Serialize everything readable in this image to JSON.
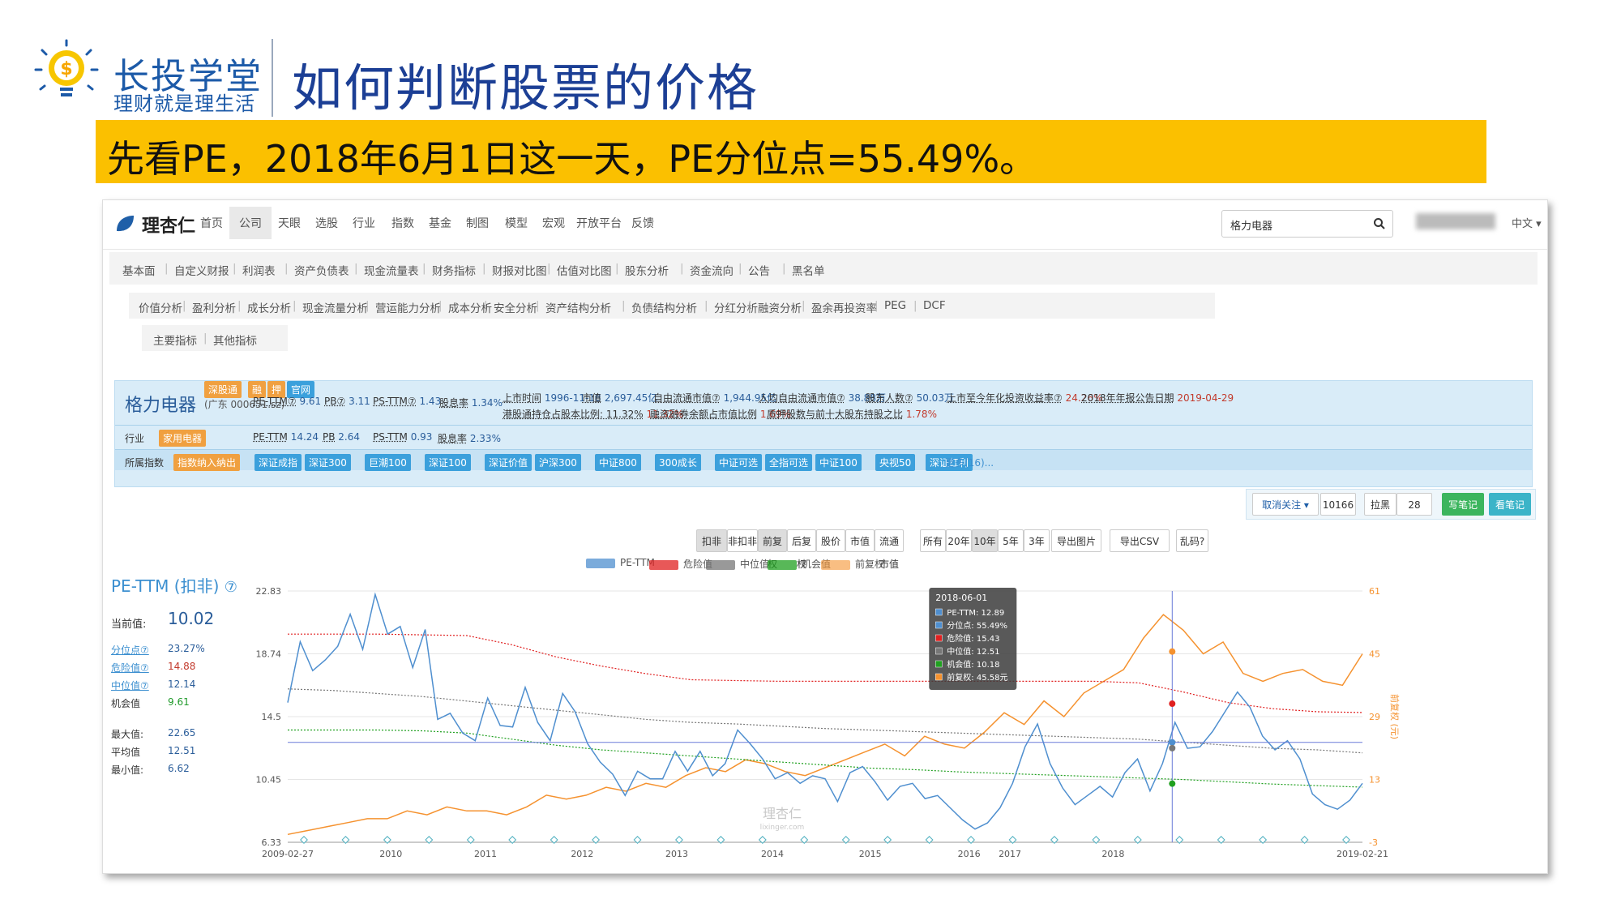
{
  "slide": {
    "brand_name": "长投学堂",
    "brand_slogan": "理财就是理生活",
    "title": "如何判断股票的价格",
    "banner": "先看PE，2018年6月1日这一天，PE分位点=55.49%。"
  },
  "site": {
    "logo": "理杏仁",
    "nav": [
      "首页",
      "公司",
      "天眼",
      "选股",
      "行业",
      "指数",
      "基金",
      "制图",
      "模型",
      "宏观",
      "开放平台",
      "反馈"
    ],
    "search_value": "格力电器",
    "language": "中文"
  },
  "tabs1": [
    "基本面",
    "自定义财报",
    "利润表",
    "资产负债表",
    "现金流量表",
    "财务指标",
    "财报对比图",
    "估值对比图",
    "股东分析",
    "资金流向",
    "公告",
    "黑名单"
  ],
  "tabs2": [
    "价值分析",
    "盈利分析",
    "成长分析",
    "现金流量分析",
    "营运能力分析",
    "成本分析",
    "安全分析",
    "资产结构分析",
    "负债结构分析",
    "分红分析",
    "融资分析",
    "盈余再投资率",
    "PEG",
    "DCF"
  ],
  "tabs3": [
    "主要指标",
    "其他指标"
  ],
  "stock": {
    "name": "格力电器",
    "code": "(广东 000651.sz)",
    "tags": [
      "深股通",
      "融",
      "押",
      "官网"
    ],
    "row1": [
      {
        "k": "PE-TTM⑦",
        "v": "9.61"
      },
      {
        "k": "PB⑦",
        "v": "3.11"
      },
      {
        "k": "PS-TTM⑦",
        "v": "1.43"
      },
      {
        "k": "股息率",
        "v": "1.34%"
      }
    ],
    "row1b": [
      {
        "k": "上市时间",
        "v": "1996-11-18"
      },
      {
        "k": "市值",
        "v": "2,697.45亿"
      },
      {
        "k": "自由流通市值⑦",
        "v": "1,944.95亿"
      },
      {
        "k": "人均自由流通市值⑦",
        "v": "38.88万"
      },
      {
        "k": "股东人数⑦",
        "v": "50.03万"
      },
      {
        "k": "上市至今年化投资收益率⑦",
        "v": "24.26%"
      },
      {
        "k": "2018年年报公告日期",
        "v": "2019-04-29"
      }
    ],
    "row2b": [
      {
        "k": "港股通持仓占股本比例: 11.32%",
        "v": "11.32%"
      },
      {
        "k": "融资融券余额占市值比例",
        "v": "1.69%"
      },
      {
        "k": "质押股数与前十大股东持股之比",
        "v": "1.78%"
      }
    ],
    "industry_label": "行业",
    "industry": "家用电器",
    "row3": [
      {
        "k": "PE-TTM",
        "v": "14.24"
      },
      {
        "k": "PB",
        "v": "2.64"
      },
      {
        "k": "PS-TTM",
        "v": "0.93"
      },
      {
        "k": "股息率",
        "v": "2.33%"
      }
    ],
    "index_label": "所属指数",
    "index_tag": "指数纳入纳出",
    "indices": [
      "深证成指",
      "深证300",
      "巨潮100",
      "深证100",
      "深证价值",
      "沪深300",
      "中证800",
      "300成长",
      "中证可选",
      "全指可选",
      "中证100",
      "央视50",
      "深证红利"
    ],
    "more": "更多(16)..."
  },
  "actions": {
    "unfollow": "取消关注",
    "follow_count": "10166",
    "blacklist": "拉黑",
    "black_count": "28",
    "write_note": "写笔记",
    "view_note": "看笔记"
  },
  "controls": {
    "group1": [
      "扣非",
      "非扣非"
    ],
    "group2": [
      "前复权",
      "后复权",
      "股价",
      "市值",
      "流通市值"
    ],
    "group3": [
      "所有",
      "20年",
      "10年",
      "5年",
      "3年"
    ],
    "export_img": "导出图片",
    "export_csv": "导出CSV",
    "garbled": "乱码?"
  },
  "side": {
    "title": "PE-TTM (扣非)",
    "current_label": "当前值:",
    "current": "10.02",
    "stats": [
      {
        "k": "分位点⑦",
        "v": "23.27%"
      },
      {
        "k": "危险值⑦",
        "v": "14.88"
      },
      {
        "k": "中位值⑦",
        "v": "12.14"
      },
      {
        "k": "机会值",
        "v": "9.61"
      }
    ],
    "stats2": [
      {
        "k": "最大值:",
        "v": "22.65"
      },
      {
        "k": "平均值",
        "v": "12.51"
      },
      {
        "k": "最小值:",
        "v": "6.62"
      }
    ]
  },
  "chart_data": {
    "type": "line",
    "title": "PE-TTM (扣非)",
    "legend": [
      "PE-TTM",
      "危险值",
      "中位值",
      "机会值",
      "前复权"
    ],
    "colors": {
      "pe": "#4f8fcf",
      "danger": "#e02020",
      "median": "#777777",
      "opportunity": "#20a020",
      "price": "#f5922f"
    },
    "xlabels": [
      "2009-02-27",
      "2010",
      "2011",
      "2012",
      "2013",
      "2014",
      "2015",
      "2016",
      "2017",
      "2018",
      "2019-02-21"
    ],
    "yleft": [
      "22.83",
      "18.74",
      "14.5",
      "10.45",
      "6.33"
    ],
    "yright": [
      "61",
      "45",
      "29",
      "13",
      "-3"
    ],
    "yright_label": "前复权 (元)",
    "ylim_left": [
      6.33,
      22.83
    ],
    "ylim_right": [
      -3,
      61
    ],
    "pe_series": [
      15.5,
      19.5,
      17.6,
      18.3,
      19.2,
      21.3,
      19.0,
      22.6,
      20.0,
      20.5,
      17.8,
      20.3,
      14.4,
      14.8,
      13.5,
      13.0,
      15.8,
      14.0,
      13.9,
      16.5,
      14.2,
      13.0,
      16.1,
      14.9,
      12.8,
      11.6,
      10.8,
      9.4,
      11.0,
      10.5,
      10.5,
      12.3,
      11.0,
      12.3,
      10.7,
      11.5,
      13.7,
      12.8,
      11.8,
      10.5,
      10.9,
      10.2,
      10.7,
      10.5,
      9.0,
      10.9,
      11.3,
      10.3,
      9.1,
      10.0,
      10.2,
      9.2,
      9.4,
      8.6,
      7.8,
      7.2,
      7.6,
      8.6,
      10.2,
      12.6,
      14.1,
      11.5,
      9.9,
      8.8,
      9.4,
      10.0,
      9.3,
      10.9,
      11.8,
      9.7,
      11.5,
      14.2,
      12.5,
      12.6,
      13.6,
      14.9,
      16.2,
      15.2,
      13.3,
      12.4,
      13.0,
      11.8,
      9.5,
      8.8,
      8.5,
      9.1,
      10.2
    ],
    "danger": [
      20.0,
      20.0,
      20.0,
      19.95,
      19.9,
      19.3,
      18.5,
      17.9,
      17.4,
      17.0,
      16.95,
      16.9,
      16.9,
      16.9,
      16.9,
      16.9,
      16.9,
      16.9,
      16.9,
      16.8,
      16.2,
      15.5,
      15.1,
      14.9,
      14.85
    ],
    "median": [
      16.4,
      16.3,
      16.1,
      15.9,
      15.6,
      15.3,
      15.0,
      14.7,
      14.4,
      14.2,
      14.1,
      13.95,
      13.8,
      13.7,
      13.6,
      13.5,
      13.4,
      13.3,
      13.2,
      13.1,
      12.9,
      12.7,
      12.5,
      12.4,
      12.2
    ],
    "opportunity": [
      13.7,
      13.7,
      13.7,
      13.65,
      13.5,
      13.1,
      12.7,
      12.4,
      12.2,
      12.0,
      11.8,
      11.6,
      11.4,
      11.2,
      11.1,
      10.95,
      10.85,
      10.75,
      10.65,
      10.55,
      10.45,
      10.3,
      10.15,
      10.05,
      9.95
    ],
    "price": [
      -1,
      0,
      1,
      2,
      3,
      3,
      5,
      4,
      6,
      5,
      5,
      4,
      6,
      9,
      8,
      9,
      11,
      10,
      12,
      11,
      14,
      16,
      15,
      18,
      17,
      15,
      14,
      16,
      18,
      20,
      22,
      19,
      24,
      22,
      21,
      25,
      30,
      27,
      33,
      29,
      35,
      38,
      41,
      49,
      55,
      51,
      45,
      48,
      40,
      38,
      40,
      41,
      38,
      37,
      45
    ]
  },
  "tooltip": {
    "date": "2018-06-01",
    "rows": [
      {
        "k": "PE-TTM",
        "v": "12.89",
        "color": "#4f8fcf"
      },
      {
        "k": "分位点",
        "v": "55.49%",
        "color": "#4f8fcf"
      },
      {
        "k": "危险值",
        "v": "15.43",
        "color": "#e02020"
      },
      {
        "k": "中位值",
        "v": "12.51",
        "color": "#777777"
      },
      {
        "k": "机会值",
        "v": "10.18",
        "color": "#20a020"
      },
      {
        "k": "前复权",
        "v": "45.58元",
        "color": "#f5922f"
      }
    ]
  },
  "watermark": {
    "cn": "理杏仁",
    "en": "lixinger.com"
  }
}
